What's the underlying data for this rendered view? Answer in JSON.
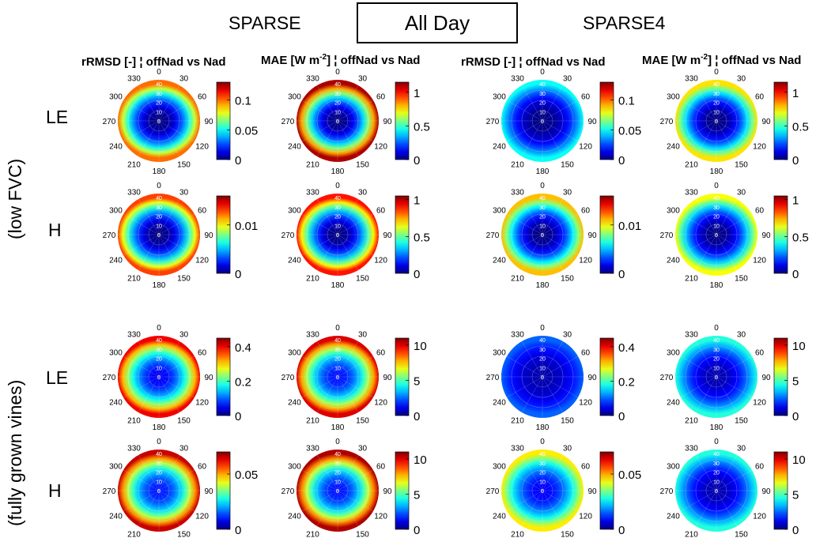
{
  "header": {
    "left_group": "SPARSE",
    "center_title": "All Day",
    "right_group": "SPARSE4"
  },
  "column_titles": [
    {
      "pre": "rRMSD [-] ¦ offNad vs Nad",
      "unit_base": "",
      "unit_exp": "",
      "post": ""
    },
    {
      "pre": "MAE [W m",
      "unit_exp": "-2",
      "post": "] ¦ offNad vs Nad"
    },
    {
      "pre": "rRMSD [-] ¦ offNad vs Nad",
      "unit_exp": "",
      "post": ""
    },
    {
      "pre": "MAE [W m",
      "unit_exp": "-2",
      "post": "] ¦ offNad vs Nad"
    }
  ],
  "row_groups": [
    "(low FVC)",
    "(fully grown vines)"
  ],
  "row_labels": [
    "LE",
    "H",
    "LE",
    "H"
  ],
  "chart_data": {
    "type": "heatmap",
    "subtype": "polar",
    "angle_ticks": [
      "0",
      "30",
      "60",
      "90",
      "120",
      "150",
      "180",
      "210",
      "240",
      "270",
      "300",
      "330"
    ],
    "radial_ticks": [
      "0",
      "10",
      "20",
      "30",
      "40"
    ],
    "colormap": "jet",
    "panels": [
      {
        "dataset": "SPARSE",
        "vegetation": "low FVC",
        "flux": "LE",
        "metric": "rRMSD",
        "clim": [
          0,
          0.13
        ],
        "cbar_ticks": [
          "0",
          "0.05",
          "0.1"
        ],
        "cbar_values": [
          0,
          0.05,
          0.1
        ],
        "center_value": 0.0,
        "edge_value": 0.1
      },
      {
        "dataset": "SPARSE",
        "vegetation": "low FVC",
        "flux": "LE",
        "metric": "MAE",
        "clim": [
          0,
          1.15
        ],
        "cbar_ticks": [
          "0",
          "0.5",
          "1"
        ],
        "cbar_values": [
          0,
          0.5,
          1
        ],
        "center_value": 0.0,
        "edge_value": 1.1
      },
      {
        "dataset": "SPARSE4",
        "vegetation": "low FVC",
        "flux": "LE",
        "metric": "rRMSD",
        "clim": [
          0,
          0.13
        ],
        "cbar_ticks": [
          "0",
          "0.05",
          "0.1"
        ],
        "cbar_values": [
          0,
          0.05,
          0.1
        ],
        "center_value": 0.0,
        "edge_value": 0.05
      },
      {
        "dataset": "SPARSE4",
        "vegetation": "low FVC",
        "flux": "LE",
        "metric": "MAE",
        "clim": [
          0,
          1.15
        ],
        "cbar_ticks": [
          "0",
          "0.5",
          "1"
        ],
        "cbar_values": [
          0,
          0.5,
          1
        ],
        "center_value": 0.0,
        "edge_value": 0.75
      },
      {
        "dataset": "SPARSE",
        "vegetation": "low FVC",
        "flux": "H",
        "metric": "rRMSD",
        "clim": [
          0,
          0.016
        ],
        "cbar_ticks": [
          "0",
          "0.01"
        ],
        "cbar_values": [
          0,
          0.01
        ],
        "center_value": 0.0,
        "edge_value": 0.013
      },
      {
        "dataset": "SPARSE",
        "vegetation": "low FVC",
        "flux": "H",
        "metric": "MAE",
        "clim": [
          0,
          1.05
        ],
        "cbar_ticks": [
          "0",
          "0.5",
          "1"
        ],
        "cbar_values": [
          0,
          0.5,
          1
        ],
        "center_value": 0.0,
        "edge_value": 0.9
      },
      {
        "dataset": "SPARSE4",
        "vegetation": "low FVC",
        "flux": "H",
        "metric": "rRMSD",
        "clim": [
          0,
          0.016
        ],
        "cbar_ticks": [
          "0",
          "0.01"
        ],
        "cbar_values": [
          0,
          0.01
        ],
        "center_value": 0.0,
        "edge_value": 0.011
      },
      {
        "dataset": "SPARSE4",
        "vegetation": "low FVC",
        "flux": "H",
        "metric": "MAE",
        "clim": [
          0,
          1.05
        ],
        "cbar_ticks": [
          "0",
          "0.5",
          "1"
        ],
        "cbar_values": [
          0,
          0.5,
          1
        ],
        "center_value": 0.0,
        "edge_value": 0.65
      },
      {
        "dataset": "SPARSE",
        "vegetation": "fully grown vines",
        "flux": "LE",
        "metric": "rRMSD",
        "clim": [
          0,
          0.45
        ],
        "cbar_ticks": [
          "0",
          "0.2",
          "0.4"
        ],
        "cbar_values": [
          0,
          0.2,
          0.4
        ],
        "center_value": 0.05,
        "edge_value": 0.4
      },
      {
        "dataset": "SPARSE",
        "vegetation": "fully grown vines",
        "flux": "LE",
        "metric": "MAE",
        "clim": [
          0,
          11
        ],
        "cbar_ticks": [
          "0",
          "5",
          "10"
        ],
        "cbar_values": [
          0,
          5,
          10
        ],
        "center_value": 1.5,
        "edge_value": 10
      },
      {
        "dataset": "SPARSE4",
        "vegetation": "fully grown vines",
        "flux": "LE",
        "metric": "rRMSD",
        "clim": [
          0,
          0.45
        ],
        "cbar_ticks": [
          "0",
          "0.2",
          "0.4"
        ],
        "cbar_values": [
          0,
          0.2,
          0.4
        ],
        "center_value": 0.02,
        "edge_value": 0.1
      },
      {
        "dataset": "SPARSE4",
        "vegetation": "fully grown vines",
        "flux": "LE",
        "metric": "MAE",
        "clim": [
          0,
          11
        ],
        "cbar_ticks": [
          "0",
          "5",
          "10"
        ],
        "cbar_values": [
          0,
          5,
          10
        ],
        "center_value": 0.5,
        "edge_value": 4.5
      },
      {
        "dataset": "SPARSE",
        "vegetation": "fully grown vines",
        "flux": "H",
        "metric": "rRMSD",
        "clim": [
          0,
          0.07
        ],
        "cbar_ticks": [
          "0",
          "0.05"
        ],
        "cbar_values": [
          0,
          0.05
        ],
        "center_value": 0.01,
        "edge_value": 0.065
      },
      {
        "dataset": "SPARSE",
        "vegetation": "fully grown vines",
        "flux": "H",
        "metric": "MAE",
        "clim": [
          0,
          11
        ],
        "cbar_ticks": [
          "0",
          "5",
          "10"
        ],
        "cbar_values": [
          0,
          5,
          10
        ],
        "center_value": 1.5,
        "edge_value": 10.5
      },
      {
        "dataset": "SPARSE4",
        "vegetation": "fully grown vines",
        "flux": "H",
        "metric": "rRMSD",
        "clim": [
          0,
          0.07
        ],
        "cbar_ticks": [
          "0",
          "0.05"
        ],
        "cbar_values": [
          0,
          0.05
        ],
        "center_value": 0.008,
        "edge_value": 0.045
      },
      {
        "dataset": "SPARSE4",
        "vegetation": "fully grown vines",
        "flux": "H",
        "metric": "MAE",
        "clim": [
          0,
          11
        ],
        "cbar_ticks": [
          "0",
          "5",
          "10"
        ],
        "cbar_values": [
          0,
          5,
          10
        ],
        "center_value": 0.5,
        "edge_value": 4.5
      }
    ]
  }
}
